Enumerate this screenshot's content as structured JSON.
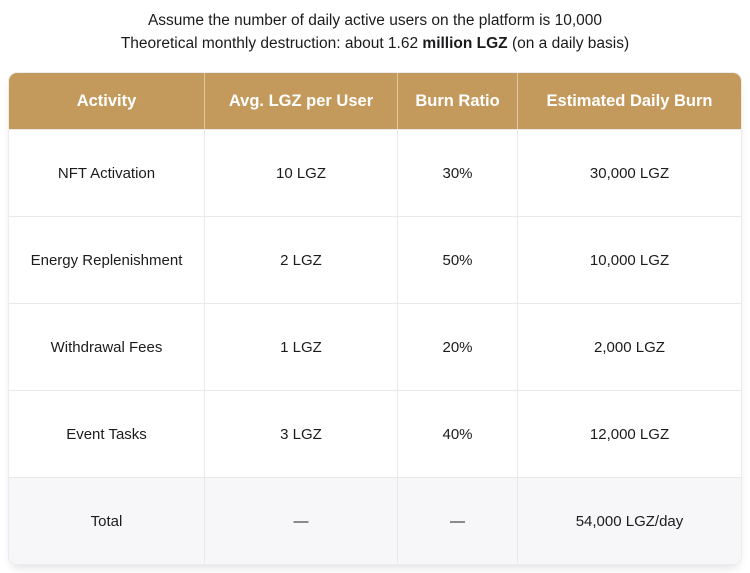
{
  "intro": {
    "line1": "Assume the number of daily active users on the platform is 10,000",
    "line2_prefix": "Theoretical monthly destruction: about 1.62 ",
    "line2_bold": "million LGZ",
    "line2_suffix": " (on a daily basis)"
  },
  "colors": {
    "header_bg": "#c49a5c",
    "header_text": "#ffffff",
    "row_border": "#e9e9ec",
    "total_row_bg": "#f7f7f9",
    "body_text": "#1c1c1e"
  },
  "table": {
    "columns": [
      "Activity",
      "Avg. LGZ per User",
      "Burn Ratio",
      "Estimated Daily Burn"
    ],
    "rows": [
      {
        "activity": "NFT Activation",
        "avg_lgz": "10 LGZ",
        "burn_ratio": "30%",
        "daily_burn": "30,000 LGZ"
      },
      {
        "activity": "Energy Replenishment",
        "avg_lgz": "2 LGZ",
        "burn_ratio": "50%",
        "daily_burn": "10,000 LGZ"
      },
      {
        "activity": "Withdrawal Fees",
        "avg_lgz": "1 LGZ",
        "burn_ratio": "20%",
        "daily_burn": "2,000 LGZ"
      },
      {
        "activity": "Event Tasks",
        "avg_lgz": "3 LGZ",
        "burn_ratio": "40%",
        "daily_burn": "12,000 LGZ"
      },
      {
        "activity": "Total",
        "avg_lgz": "—",
        "burn_ratio": "—",
        "daily_burn": "54,000 LGZ/day"
      }
    ]
  },
  "chart_data": {
    "type": "table",
    "title": "Theoretical daily LGZ destruction assuming 10,000 daily active users",
    "columns": [
      "Activity",
      "Avg. LGZ per User",
      "Burn Ratio",
      "Estimated Daily Burn"
    ],
    "rows": [
      [
        "NFT Activation",
        "10 LGZ",
        "30%",
        "30,000 LGZ"
      ],
      [
        "Energy Replenishment",
        "2 LGZ",
        "50%",
        "10,000 LGZ"
      ],
      [
        "Withdrawal Fees",
        "1 LGZ",
        "20%",
        "2,000 LGZ"
      ],
      [
        "Event Tasks",
        "3 LGZ",
        "40%",
        "12,000 LGZ"
      ],
      [
        "Total",
        "—",
        "—",
        "54,000 LGZ/day"
      ]
    ],
    "numeric": {
      "daily_active_users": 10000,
      "avg_lgz_per_user": [
        10,
        2,
        1,
        3
      ],
      "burn_ratio_pct": [
        30,
        50,
        20,
        40
      ],
      "estimated_daily_burn_lgz": [
        30000,
        10000,
        2000,
        12000
      ],
      "total_daily_burn_lgz_per_day": 54000,
      "theoretical_monthly_destruction_million_lgz": 1.62
    }
  }
}
